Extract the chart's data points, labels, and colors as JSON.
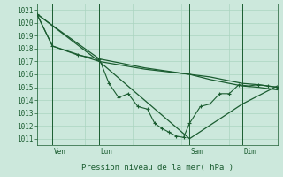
{
  "xlabel": "Pression niveau de la mer( hPa )",
  "bg_color": "#cce8dc",
  "grid_color": "#aad4c0",
  "line_color": "#1a5c30",
  "ylim": [
    1010.5,
    1021.5
  ],
  "yticks": [
    1011,
    1012,
    1013,
    1014,
    1015,
    1016,
    1017,
    1018,
    1019,
    1020,
    1021
  ],
  "xlim": [
    0,
    1
  ],
  "day_positions": [
    0.065,
    0.26,
    0.635,
    0.855
  ],
  "day_labels": [
    "Ven",
    "Lun",
    "Sam",
    "Dim"
  ],
  "vline_positions": [
    0.065,
    0.26,
    0.635,
    0.855
  ],
  "series": [
    {
      "x": [
        0.0,
        0.065,
        0.26,
        0.45,
        0.635,
        0.72,
        0.8,
        0.855,
        0.92,
        1.0
      ],
      "y": [
        1020.7,
        1019.8,
        1017.2,
        1016.5,
        1016.0,
        1015.8,
        1015.5,
        1015.3,
        1015.2,
        1015.0
      ],
      "markers": false,
      "lw": 0.9
    },
    {
      "x": [
        0.0,
        0.065,
        0.26,
        0.45,
        0.635,
        0.72,
        0.8,
        0.855,
        0.92,
        1.0
      ],
      "y": [
        1020.7,
        1018.2,
        1017.0,
        1016.4,
        1016.0,
        1015.6,
        1015.3,
        1015.1,
        1015.0,
        1014.8
      ],
      "markers": false,
      "lw": 0.9
    },
    {
      "x": [
        0.0,
        0.26,
        0.635,
        0.855,
        1.0
      ],
      "y": [
        1020.7,
        1017.0,
        1011.0,
        1013.7,
        1015.1
      ],
      "markers": false,
      "lw": 0.9
    },
    {
      "x": [
        0.0,
        0.065,
        0.17,
        0.26,
        0.3,
        0.34,
        0.38,
        0.42,
        0.46,
        0.49,
        0.52,
        0.55,
        0.58,
        0.61,
        0.635,
        0.68,
        0.72,
        0.76,
        0.8,
        0.84,
        0.88,
        0.92,
        0.96,
        1.0
      ],
      "y": [
        1020.7,
        1018.2,
        1017.5,
        1017.2,
        1015.3,
        1014.2,
        1014.5,
        1013.5,
        1013.3,
        1012.2,
        1011.8,
        1011.5,
        1011.2,
        1011.1,
        1012.2,
        1013.5,
        1013.7,
        1014.5,
        1014.5,
        1015.2,
        1015.1,
        1015.2,
        1015.1,
        1015.0
      ],
      "markers": true,
      "lw": 0.8
    }
  ]
}
